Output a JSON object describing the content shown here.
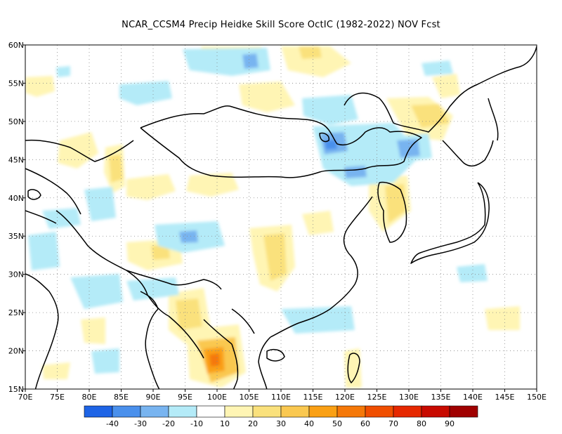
{
  "title": "NCAR_CCSM4 Precip Heidke Skill Score OctIC (1982-2022) NOV Fcst",
  "longitude_labels": [
    "70E",
    "75E",
    "80E",
    "85E",
    "90E",
    "95E",
    "100E",
    "105E",
    "110E",
    "115E",
    "120E",
    "125E",
    "130E",
    "135E",
    "140E",
    "145E",
    "150E"
  ],
  "latitude_labels": [
    "60N",
    "55N",
    "50N",
    "45N",
    "40N",
    "35N",
    "30N",
    "25N",
    "20N",
    "15N"
  ],
  "colorbar": {
    "colors": [
      "#1e64e6",
      "#4a90ec",
      "#78b4f0",
      "#b4ebf8",
      "#ffffff",
      "#fff5b4",
      "#fae17c",
      "#fac850",
      "#faa014",
      "#f57808",
      "#f04e00",
      "#e62800",
      "#c80a00",
      "#a00000"
    ],
    "labels": [
      "-40",
      "-30",
      "-20",
      "-10",
      "10",
      "20",
      "30",
      "40",
      "50",
      "60",
      "70",
      "80",
      "90"
    ]
  },
  "map_extent": {
    "lon": [
      70,
      150
    ],
    "lat": [
      15,
      60
    ]
  }
}
